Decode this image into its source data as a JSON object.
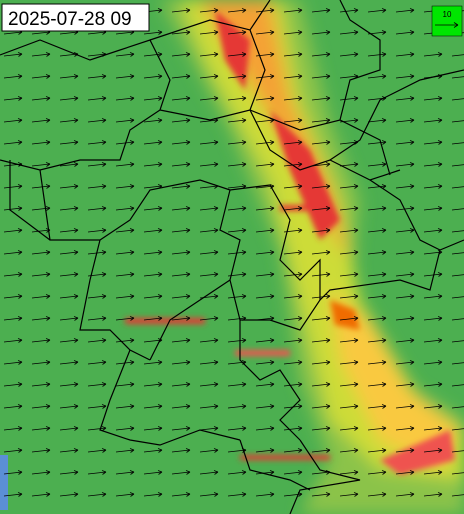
{
  "timestamp": "2025-07-28 09",
  "legend": {
    "label": "10"
  }
}
